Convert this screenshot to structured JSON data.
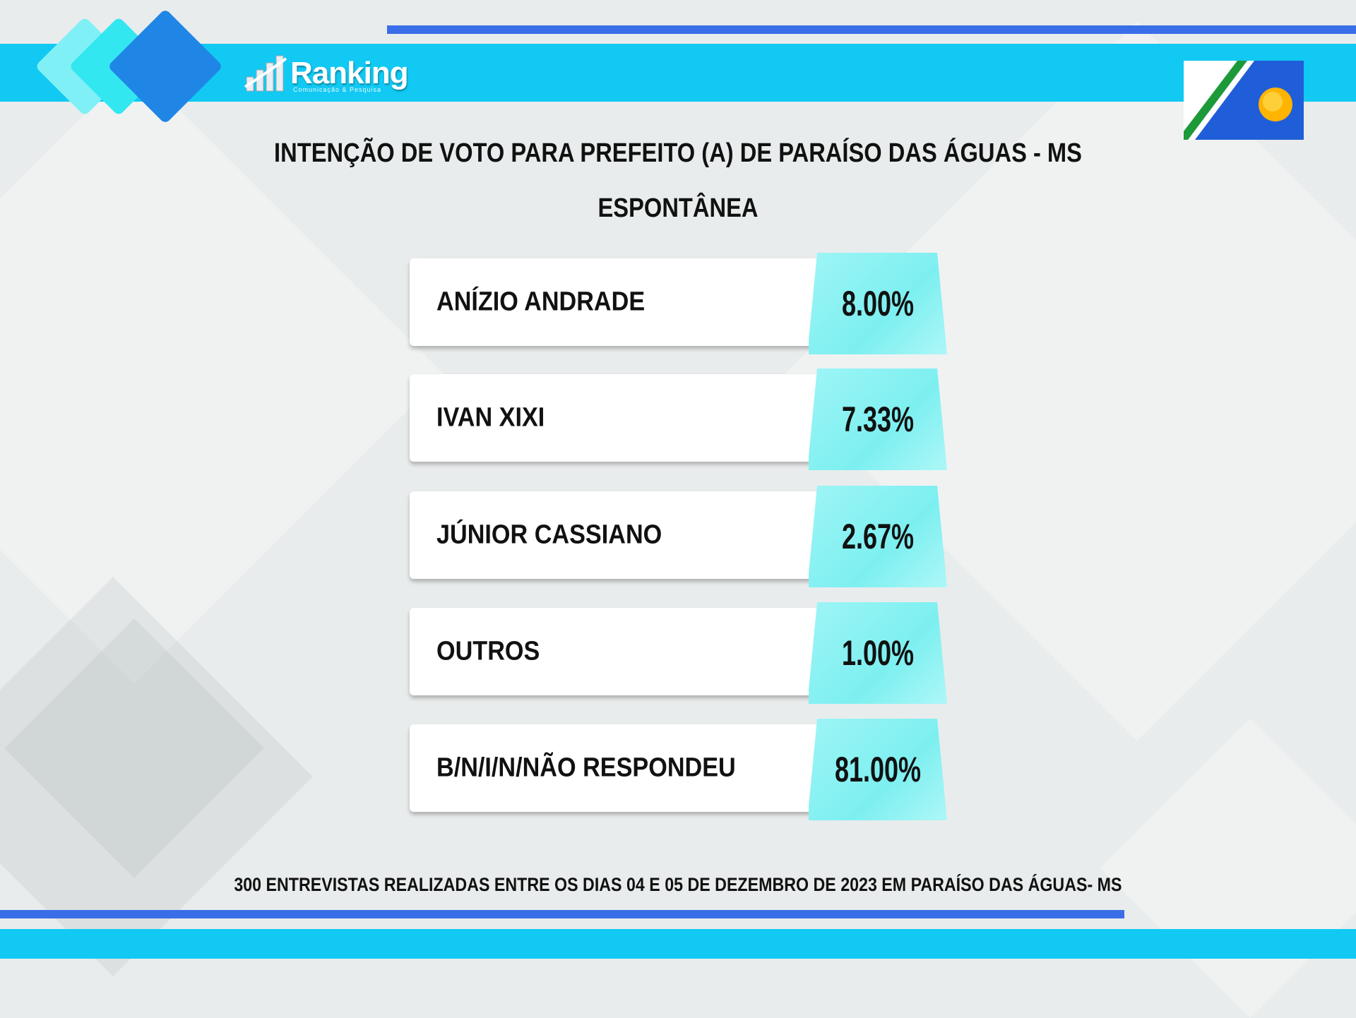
{
  "brand": {
    "name": "Ranking",
    "tagline": "Comunicação & Pesquisa"
  },
  "colors": {
    "accent": "#11c9f2",
    "line": "#3a6ee8",
    "value_bg": "#8ff2f3"
  },
  "chart_data": {
    "type": "table",
    "title": "INTENÇÃO DE VOTO PARA PREFEITO (A) DE PARAÍSO DAS ÁGUAS - MS",
    "subtitle": "ESPONTÂNEA",
    "rows": [
      {
        "label": "ANÍZIO ANDRADE",
        "value": 8.0,
        "value_text": "8.00%"
      },
      {
        "label": "IVAN XIXI",
        "value": 7.33,
        "value_text": "7.33%"
      },
      {
        "label": "JÚNIOR CASSIANO",
        "value": 2.67,
        "value_text": "2.67%"
      },
      {
        "label": "OUTROS",
        "value": 1.0,
        "value_text": "1.00%"
      },
      {
        "label": "B/N/I/N/NÃO RESPONDEU",
        "value": 81.0,
        "value_text": "81.00%"
      }
    ]
  },
  "footer": "300 ENTREVISTAS REALIZADAS ENTRE OS DIAS 04 E 05 DE DEZEMBRO DE 2023 EM PARAÍSO DAS ÁGUAS- MS"
}
